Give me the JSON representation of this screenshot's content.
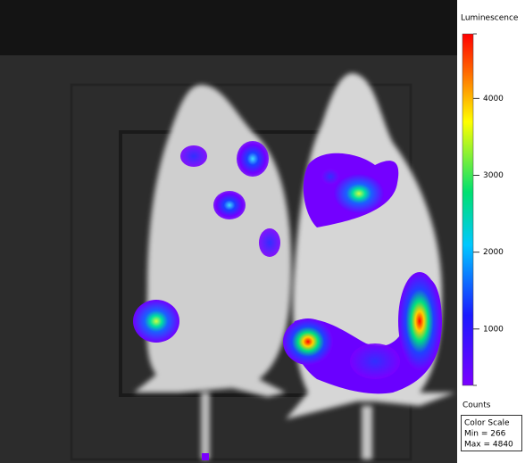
{
  "colorbar": {
    "title": "Luminescence",
    "unit": "Counts",
    "ticks": [
      1000,
      2000,
      3000,
      4000
    ],
    "min": 266,
    "max": 4840
  },
  "color_scale": {
    "title": "Color Scale",
    "min_label": "Min = 266",
    "max_label": "Max = 4840"
  }
}
